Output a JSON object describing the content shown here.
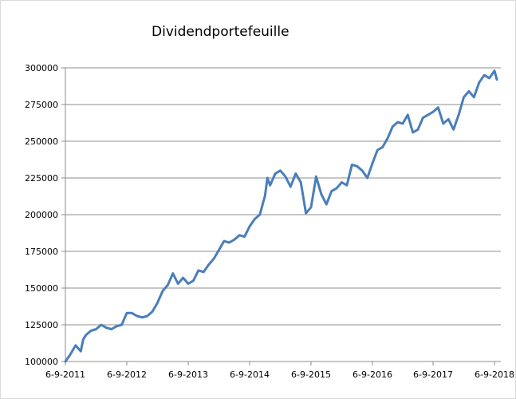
{
  "chart_data": {
    "type": "line",
    "title": "Dividendportefeuille",
    "xlabel": "",
    "ylabel": "",
    "ylim": [
      100000,
      300000
    ],
    "yticks": [
      100000,
      125000,
      150000,
      175000,
      200000,
      225000,
      250000,
      275000,
      300000
    ],
    "xticks": [
      "6-9-2011",
      "6-9-2012",
      "6-9-2013",
      "6-9-2014",
      "6-9-2015",
      "6-9-2016",
      "6-9-2017",
      "6-9-2018"
    ],
    "grid": "horizontal",
    "line_color": "#4a7ebb",
    "series": [
      {
        "x": [
          "2011-09",
          "2011-10",
          "2011-11",
          "2011-12",
          "2011-12",
          "2012-01",
          "2012-02",
          "2012-03",
          "2012-04",
          "2012-05",
          "2012-06",
          "2012-07",
          "2012-08",
          "2012-09",
          "2012-10",
          "2012-11",
          "2012-12",
          "2013-01",
          "2013-02",
          "2013-03",
          "2013-04",
          "2013-05",
          "2013-06",
          "2013-07",
          "2013-08",
          "2013-09",
          "2013-10",
          "2013-11",
          "2013-12",
          "2014-01",
          "2014-02",
          "2014-03",
          "2014-04",
          "2014-05",
          "2014-06",
          "2014-07",
          "2014-08",
          "2014-09",
          "2014-10",
          "2014-11",
          "2014-12",
          "2014-12",
          "2015-01",
          "2015-02",
          "2015-03",
          "2015-04",
          "2015-05",
          "2015-06",
          "2015-07",
          "2015-08",
          "2015-09",
          "2015-10",
          "2015-11",
          "2015-12",
          "2016-01",
          "2016-02",
          "2016-03",
          "2016-04",
          "2016-05",
          "2016-06",
          "2016-07",
          "2016-08",
          "2016-09",
          "2016-10",
          "2016-11",
          "2016-12",
          "2017-01",
          "2017-02",
          "2017-03",
          "2017-04",
          "2017-05",
          "2017-06",
          "2017-07",
          "2017-08",
          "2017-09",
          "2017-10",
          "2017-11",
          "2017-12",
          "2018-01",
          "2018-02",
          "2018-03",
          "2018-04",
          "2018-05",
          "2018-06",
          "2018-07",
          "2018-08",
          "2018-09",
          "2018-09"
        ],
        "values": [
          100000,
          105000,
          111000,
          107000,
          115000,
          118000,
          121000,
          122000,
          125000,
          123000,
          122000,
          124000,
          125000,
          133000,
          133000,
          131000,
          130000,
          131000,
          134000,
          140000,
          148000,
          152000,
          160000,
          153000,
          157000,
          153000,
          155000,
          162000,
          161000,
          166000,
          170000,
          176000,
          182000,
          181000,
          183000,
          186000,
          185000,
          192000,
          197000,
          200000,
          213000,
          225000,
          220000,
          228000,
          230000,
          226000,
          219000,
          228000,
          222000,
          201000,
          205000,
          226000,
          214000,
          207000,
          216000,
          218000,
          222000,
          220000,
          234000,
          233000,
          230000,
          225000,
          235000,
          244000,
          246000,
          252000,
          260000,
          263000,
          262000,
          268000,
          256000,
          258000,
          266000,
          268000,
          270000,
          273000,
          262000,
          265000,
          258000,
          268000,
          280000,
          284000,
          280000,
          290000,
          295000,
          293000,
          298000,
          292000
        ]
      }
    ]
  }
}
